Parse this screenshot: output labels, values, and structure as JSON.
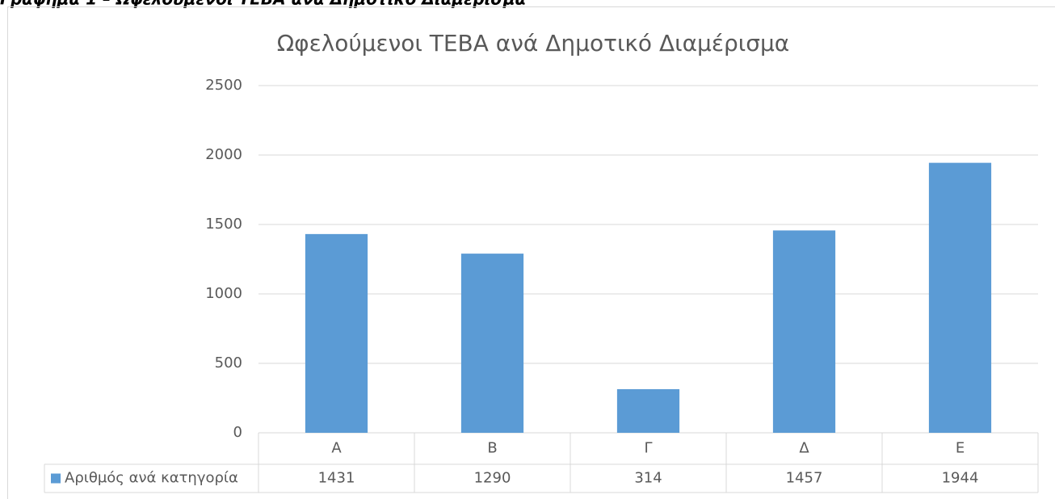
{
  "caption": "Γράφημα 1 – Ωφελούμενοι ΤΕΒΑ ανά Δημοτικό Διαμέρισμα",
  "chart_data": {
    "type": "bar",
    "title": "Ωφελούμενοι ΤΕΒΑ ανά Δημοτικό Διαμέρισμα",
    "categories": [
      "Α",
      "Β",
      "Γ",
      "Δ",
      "Ε"
    ],
    "series": [
      {
        "name": "Αριθμός ανά κατηγορία",
        "color": "#5b9bd5",
        "values": [
          1431,
          1290,
          314,
          1457,
          1944
        ]
      }
    ],
    "ylim": [
      0,
      2500
    ],
    "yticks": [
      0,
      500,
      1000,
      1500,
      2000,
      2500
    ],
    "grid": true,
    "data_table": true
  }
}
